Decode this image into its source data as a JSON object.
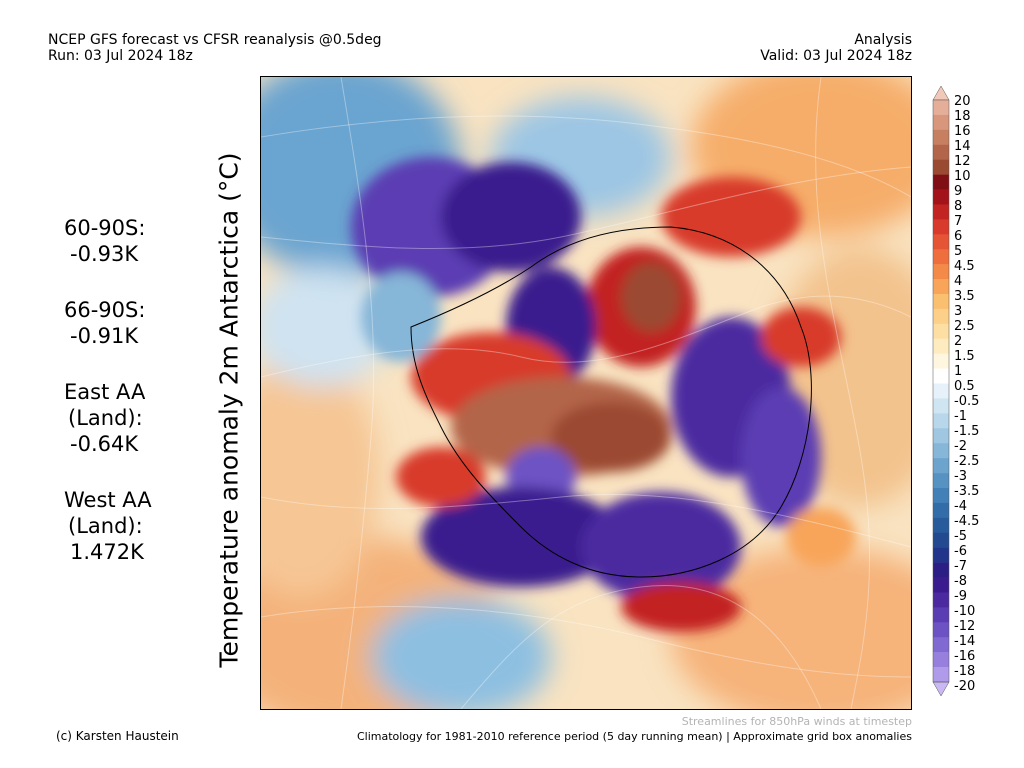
{
  "header": {
    "title": "NCEP GFS forecast vs CFSR reanalysis @0.5deg",
    "run": "Run: 03 Jul 2024 18z",
    "mode": "Analysis",
    "valid": "Valid: 03 Jul 2024 18z"
  },
  "y_title": "Temperature anomaly 2m Antarctica (°C)",
  "stats": [
    {
      "label": [
        "60-90S:"
      ],
      "value": "-0.93K"
    },
    {
      "label": [
        "66-90S:"
      ],
      "value": "-0.91K"
    },
    {
      "label": [
        "East AA",
        "(Land):"
      ],
      "value": "-0.64K"
    },
    {
      "label": [
        "West AA",
        "(Land):"
      ],
      "value": "1.472K"
    }
  ],
  "colorbar": {
    "labels": [
      "20",
      "18",
      "16",
      "14",
      "12",
      "10",
      "9",
      "8",
      "7",
      "6",
      "5",
      "4.5",
      "4",
      "3.5",
      "3",
      "2.5",
      "2",
      "1.5",
      "1",
      "0.5",
      "-0.5",
      "-1",
      "-1.5",
      "-2",
      "-2.5",
      "-3",
      "-3.5",
      "-4",
      "-4.5",
      "-5",
      "-6",
      "-7",
      "-8",
      "-9",
      "-10",
      "-12",
      "-14",
      "-16",
      "-18",
      "-20"
    ],
    "colors": [
      "#f2c8b8",
      "#e4ae98",
      "#d8967c",
      "#c77f62",
      "#b3654a",
      "#9b4a32",
      "#7f0f14",
      "#a3141a",
      "#c22421",
      "#d83a2b",
      "#e55435",
      "#ee6e3e",
      "#f48a48",
      "#f8a55a",
      "#fbbf70",
      "#fcd089",
      "#fddfa3",
      "#feebc0",
      "#fff6df",
      "#ffffff",
      "#e6f1f9",
      "#d0e5f2",
      "#b8d7ea",
      "#9fc7e1",
      "#86b6d8",
      "#6da4cd",
      "#5692c2",
      "#4380b7",
      "#336da9",
      "#275b9c",
      "#234a90",
      "#23358a",
      "#2b1f85",
      "#3a1c8e",
      "#4b2aa0",
      "#5b3db3",
      "#6d52c4",
      "#8169d2",
      "#977fde",
      "#b09aea",
      "#c9b8f3"
    ]
  },
  "map": {
    "stream_note": "Streamlines for 850hPa winds at timestep"
  },
  "footer": {
    "credit": "(c) Karsten Haustein",
    "climatology": "Climatology for 1981-2010 reference period (5 day running mean) | Approximate grid box anomalies"
  }
}
